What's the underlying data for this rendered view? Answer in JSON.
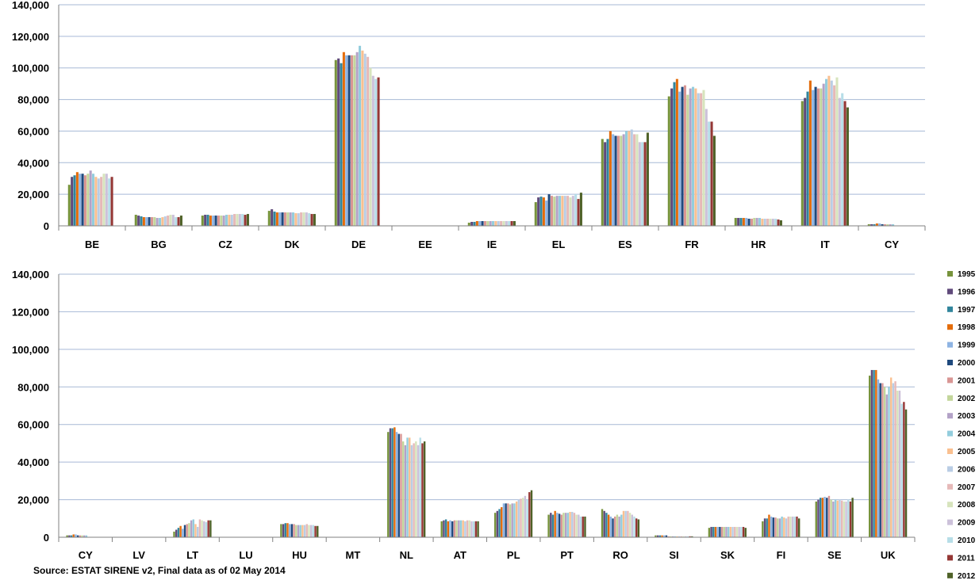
{
  "source_note": "Source:  ESTAT SIRENE v2, Final data as of 02 May 2014",
  "chart_data": [
    {
      "type": "bar",
      "ylim": [
        0,
        140000
      ],
      "yticks": [
        "0",
        "20,000",
        "40,000",
        "60,000",
        "80,000",
        "100,000",
        "120,000",
        "140,000"
      ],
      "grid": true,
      "categories": [
        "BE",
        "BG",
        "CZ",
        "DK",
        "DE",
        "EE",
        "IE",
        "EL",
        "ES",
        "FR",
        "HR",
        "IT",
        "CY"
      ],
      "values": [
        [
          26000,
          31000,
          32000,
          34000,
          33000,
          33000,
          32000,
          33000,
          35000,
          33000,
          31000,
          30000,
          31000,
          33000,
          33000,
          30000,
          31000,
          0
        ],
        [
          7000,
          6500,
          6000,
          5500,
          5500,
          5500,
          5500,
          5500,
          5000,
          5000,
          5500,
          6000,
          6500,
          7000,
          7000,
          5500,
          5500,
          6500
        ],
        [
          6500,
          7000,
          7000,
          6500,
          6500,
          6500,
          6500,
          6500,
          6500,
          7000,
          7000,
          7000,
          7500,
          7500,
          7500,
          7500,
          7000,
          7500
        ],
        [
          9500,
          10500,
          9000,
          8500,
          8500,
          8500,
          8500,
          8500,
          8500,
          8500,
          8000,
          8000,
          8500,
          8500,
          8500,
          8000,
          7500,
          7500
        ],
        [
          105000,
          106000,
          103000,
          110000,
          108000,
          108000,
          108000,
          108000,
          110000,
          114000,
          111000,
          109000,
          107000,
          100000,
          95000,
          93000,
          94000,
          0
        ],
        [
          0,
          0,
          0,
          0,
          0,
          0,
          0,
          0,
          0,
          0,
          0,
          0,
          0,
          0,
          0,
          0,
          0,
          0
        ],
        [
          2000,
          2500,
          2500,
          3000,
          3000,
          3000,
          3000,
          3000,
          3000,
          3000,
          3000,
          3000,
          3000,
          3000,
          3000,
          3000,
          3000,
          3000
        ],
        [
          15000,
          18000,
          18500,
          18000,
          16000,
          20000,
          19000,
          18500,
          19000,
          19000,
          19000,
          19000,
          19000,
          18000,
          19000,
          20000,
          17000,
          21000
        ],
        [
          55000,
          53000,
          55000,
          60000,
          58000,
          57000,
          57000,
          57000,
          58000,
          60000,
          60000,
          61000,
          58000,
          58000,
          53000,
          53000,
          53000,
          59000
        ],
        [
          82000,
          87000,
          91000,
          93000,
          85000,
          88000,
          89000,
          83000,
          87000,
          88000,
          87000,
          84000,
          84000,
          86000,
          74000,
          66000,
          66000,
          57000
        ],
        [
          5000,
          5000,
          5000,
          5000,
          5000,
          4500,
          4500,
          5000,
          5000,
          5000,
          4500,
          4500,
          4500,
          4500,
          4500,
          4500,
          4000,
          3500
        ],
        [
          79000,
          81000,
          85000,
          92000,
          86000,
          88000,
          87000,
          87000,
          90000,
          93000,
          95000,
          92000,
          89000,
          94000,
          81000,
          84000,
          79000,
          75000
        ],
        [
          1000,
          1000,
          1000,
          1500,
          1500,
          1000,
          1000,
          1000,
          1000,
          1000,
          0,
          0,
          0,
          0,
          0,
          0,
          0,
          0
        ]
      ]
    },
    {
      "type": "bar",
      "ylim": [
        0,
        140000
      ],
      "yticks": [
        "0",
        "20,000",
        "40,000",
        "60,000",
        "80,000",
        "100,000",
        "120,000",
        "140,000"
      ],
      "grid": true,
      "categories": [
        "CY",
        "LV",
        "LT",
        "LU",
        "HU",
        "MT",
        "NL",
        "AT",
        "PL",
        "PT",
        "RO",
        "SI",
        "SK",
        "FI",
        "SE",
        "UK"
      ],
      "values": [
        [
          1000,
          1000,
          1000,
          1500,
          1500,
          1000,
          1000,
          1000,
          1000,
          1000,
          0,
          0,
          0,
          0,
          0,
          0,
          0,
          0
        ],
        [
          0,
          0,
          0,
          0,
          0,
          0,
          0,
          0,
          0,
          0,
          0,
          0,
          0,
          0,
          0,
          0,
          0,
          0
        ],
        [
          3000,
          4000,
          5000,
          6000,
          4500,
          6500,
          7000,
          7500,
          9000,
          9500,
          7000,
          5500,
          9500,
          9000,
          8500,
          8000,
          9000,
          9000
        ],
        [
          0,
          0,
          0,
          0,
          0,
          0,
          0,
          0,
          0,
          0,
          0,
          0,
          0,
          0,
          0,
          0,
          0,
          0
        ],
        [
          7000,
          7000,
          7500,
          7500,
          7000,
          7000,
          7000,
          6500,
          6500,
          6500,
          6500,
          6500,
          7000,
          6500,
          6500,
          6500,
          6000,
          6000
        ],
        [
          0,
          0,
          0,
          0,
          0,
          0,
          0,
          0,
          0,
          0,
          0,
          0,
          0,
          0,
          0,
          0,
          0,
          0
        ],
        [
          56000,
          58000,
          58000,
          58500,
          56000,
          55000,
          55000,
          51000,
          49000,
          53000,
          53000,
          49000,
          50000,
          51000,
          49000,
          53000,
          50000,
          51000
        ],
        [
          8500,
          9000,
          9500,
          8500,
          9000,
          8500,
          9000,
          9000,
          9000,
          9000,
          9000,
          8500,
          9000,
          9000,
          8500,
          8500,
          8500,
          8500
        ],
        [
          13000,
          14000,
          15000,
          16000,
          18000,
          18000,
          18000,
          17500,
          18000,
          18000,
          19000,
          20000,
          20500,
          21000,
          22000,
          20000,
          24000,
          25000
        ],
        [
          12000,
          13000,
          12000,
          14000,
          13000,
          12500,
          12000,
          13000,
          13000,
          13000,
          13500,
          13500,
          13000,
          12000,
          12000,
          11000,
          11000,
          11000
        ],
        [
          15000,
          14000,
          13000,
          12000,
          11000,
          10000,
          11000,
          12000,
          11000,
          12000,
          14000,
          14000,
          14000,
          13000,
          12000,
          11000,
          10000,
          9500
        ],
        [
          1000,
          1000,
          1000,
          1000,
          1000,
          1000,
          500,
          500,
          500,
          500,
          500,
          500,
          500,
          500,
          500,
          500,
          500,
          500
        ],
        [
          5000,
          5500,
          5500,
          5500,
          5500,
          5500,
          5500,
          5500,
          5500,
          5500,
          5500,
          5500,
          5500,
          5500,
          5500,
          5500,
          5500,
          5000
        ],
        [
          8500,
          10000,
          10000,
          12000,
          11000,
          10500,
          10500,
          10000,
          10000,
          11000,
          10500,
          10000,
          11000,
          11000,
          11000,
          11000,
          11000,
          10000
        ],
        [
          19000,
          20000,
          21000,
          21000,
          21500,
          21000,
          22000,
          20000,
          19000,
          20000,
          19500,
          20000,
          19500,
          19000,
          19000,
          20000,
          19000,
          21000
        ],
        [
          86000,
          89000,
          89000,
          89000,
          84000,
          82000,
          82000,
          80000,
          76000,
          80000,
          85000,
          82000,
          83000,
          78000,
          78000,
          71000,
          72000,
          68000
        ]
      ]
    }
  ],
  "legend": {
    "years": [
      "1995",
      "1996",
      "1997",
      "1998",
      "1999",
      "2000",
      "2001",
      "2002",
      "2003",
      "2004",
      "2005",
      "2006",
      "2007",
      "2008",
      "2009",
      "2010",
      "2011",
      "2012"
    ],
    "colors": [
      "#77933c",
      "#604a7b",
      "#31859c",
      "#e46c0a",
      "#8eb4e3",
      "#1f497d",
      "#d99694",
      "#c3d69b",
      "#b3a2c7",
      "#93cddd",
      "#fac090",
      "#b9cde5",
      "#e6b9b8",
      "#d7e4bd",
      "#ccc1da",
      "#b7dee8",
      "#953735",
      "#4f6228"
    ]
  }
}
